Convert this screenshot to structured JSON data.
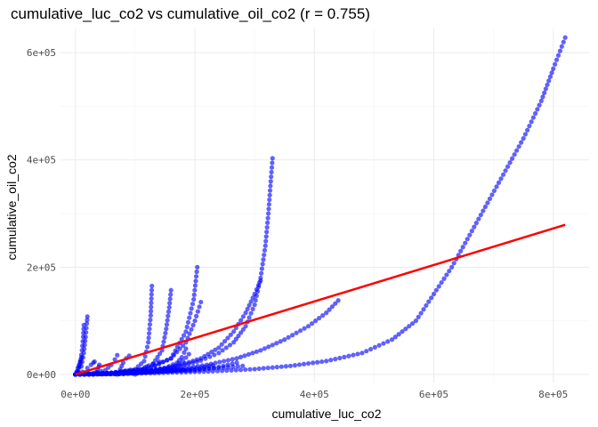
{
  "chart_data": {
    "type": "scatter",
    "title": "cumulative_luc_co2 vs cumulative_oil_co2 (r = 0.755)",
    "xlabel": "cumulative_luc_co2",
    "ylabel": "cumulative_oil_co2",
    "xlim": [
      -25000,
      860000
    ],
    "ylim": [
      -15000,
      645000
    ],
    "x_ticks": [
      0,
      200000,
      400000,
      600000,
      800000
    ],
    "x_tick_labels": [
      "0e+00",
      "2e+05",
      "4e+05",
      "6e+05",
      "8e+05"
    ],
    "y_ticks": [
      0,
      200000,
      400000,
      600000
    ],
    "y_tick_labels": [
      "0e+00",
      "2e+05",
      "4e+05",
      "6e+05"
    ],
    "grid": true,
    "colors": {
      "points": "#0000ff",
      "trend": "#ff0000",
      "grid": "#ebebeb"
    },
    "trend_line": {
      "x": [
        0,
        820000
      ],
      "y": [
        0,
        279000
      ]
    },
    "series": [
      {
        "x": [
          0,
          60000,
          140000,
          230000,
          300000,
          360000,
          420000,
          480000,
          530000,
          570000,
          600000,
          630000,
          660000,
          690000,
          720000,
          750000,
          780000,
          800000,
          820000
        ],
        "y": [
          0,
          1000,
          3000,
          6000,
          10000,
          16000,
          25000,
          40000,
          65000,
          100000,
          150000,
          200000,
          260000,
          320000,
          380000,
          440000,
          510000,
          570000,
          628000
        ]
      },
      {
        "x": [
          0,
          80000,
          160000,
          220000,
          270000,
          310000,
          350000,
          390000,
          420000,
          440000
        ],
        "y": [
          0,
          2000,
          8000,
          18000,
          30000,
          45000,
          65000,
          90000,
          115000,
          138000
        ]
      },
      {
        "x": [
          0,
          60000,
          120000,
          170000,
          210000,
          240000,
          265000,
          285000,
          300000,
          310000,
          318000,
          323000,
          327000,
          330000
        ],
        "y": [
          0,
          2000,
          6000,
          14000,
          26000,
          40000,
          60000,
          90000,
          130000,
          180000,
          240000,
          300000,
          360000,
          403000
        ]
      },
      {
        "x": [
          0,
          60000,
          120000,
          170000,
          210000,
          240000,
          265000,
          285000,
          300000,
          310000
        ],
        "y": [
          0,
          2000,
          7000,
          16000,
          30000,
          50000,
          80000,
          115000,
          150000,
          175000
        ]
      },
      {
        "x": [
          0,
          60000,
          120000,
          160000,
          185000,
          200000,
          210000
        ],
        "y": [
          0,
          3000,
          10000,
          30000,
          60000,
          100000,
          135000
        ]
      },
      {
        "x": [
          0,
          60000,
          120000,
          160000,
          185000,
          198000,
          204000
        ],
        "y": [
          0,
          3000,
          10000,
          30000,
          80000,
          140000,
          200000
        ]
      },
      {
        "x": [
          0,
          60000,
          110000,
          130000,
          145000,
          152000,
          157000,
          160000
        ],
        "y": [
          0,
          3000,
          10000,
          20000,
          45000,
          85000,
          125000,
          157000
        ]
      },
      {
        "x": [
          0,
          60000,
          100000,
          115000,
          122000,
          126000,
          128000
        ],
        "y": [
          0,
          3000,
          10000,
          25000,
          60000,
          110000,
          165000
        ]
      },
      {
        "x": [
          0,
          80000,
          120000,
          150000,
          170000,
          178000,
          182000,
          185000
        ],
        "y": [
          0,
          2000,
          6000,
          12000,
          22000,
          32000,
          41000,
          48000
        ]
      },
      {
        "x": [
          0,
          80000,
          130000,
          160000,
          180000,
          190000
        ],
        "y": [
          0,
          1000,
          5000,
          12000,
          25000,
          38000
        ]
      },
      {
        "x": [
          0,
          30000,
          60000,
          90000,
          120000,
          150000,
          180000,
          210000,
          230000
        ],
        "y": [
          0,
          500,
          1500,
          2500,
          4000,
          6000,
          9000,
          13000,
          17000
        ]
      },
      {
        "x": [
          0,
          40000,
          80000,
          120000,
          160000,
          200000,
          240000,
          280000
        ],
        "y": [
          0,
          1000,
          2000,
          4000,
          6000,
          9000,
          12000,
          16000
        ]
      },
      {
        "x": [
          0,
          5000,
          10000,
          14000,
          17000,
          19000,
          20000
        ],
        "y": [
          0,
          5000,
          15000,
          40000,
          70000,
          95000,
          108000
        ]
      },
      {
        "x": [
          0,
          4000,
          8000,
          11000,
          13000,
          14000
        ],
        "y": [
          0,
          5000,
          20000,
          45000,
          70000,
          92000
        ]
      },
      {
        "x": [
          0,
          3000,
          6000,
          8000,
          10000
        ],
        "y": [
          0,
          6000,
          15000,
          24000,
          32000
        ]
      },
      {
        "x": [
          0,
          12000,
          20000,
          26000,
          30000,
          32000
        ],
        "y": [
          0,
          5000,
          12000,
          18000,
          22000,
          24000
        ]
      },
      {
        "x": [
          30000,
          34000,
          37000,
          39000,
          40000
        ],
        "y": [
          0,
          4000,
          9000,
          14000,
          18000
        ]
      },
      {
        "x": [
          0,
          2000,
          4000,
          6000,
          8000
        ],
        "y": [
          0,
          5000,
          12000,
          18000,
          24000
        ]
      },
      {
        "x": [
          0,
          30000,
          50000,
          60000,
          66000,
          70000
        ],
        "y": [
          0,
          2000,
          8000,
          18000,
          28000,
          36000
        ]
      },
      {
        "x": [
          70000,
          75000,
          80000,
          85000,
          90000
        ],
        "y": [
          0,
          10000,
          22000,
          30000,
          35000
        ]
      },
      {
        "x": [
          100000,
          110000,
          120000,
          130000,
          140000
        ],
        "y": [
          0,
          8000,
          15000,
          20000,
          24000
        ]
      },
      {
        "x": [
          0,
          20000,
          40000,
          60000,
          80000,
          100000,
          120000,
          140000,
          160000,
          180000
        ],
        "y": [
          0,
          1000,
          2000,
          3000,
          4000,
          5000,
          6000,
          7000,
          8000,
          9000
        ]
      },
      {
        "x": [
          0,
          100000,
          200000,
          240000,
          270000
        ],
        "y": [
          0,
          3000,
          8000,
          14000,
          22000
        ]
      }
    ]
  }
}
